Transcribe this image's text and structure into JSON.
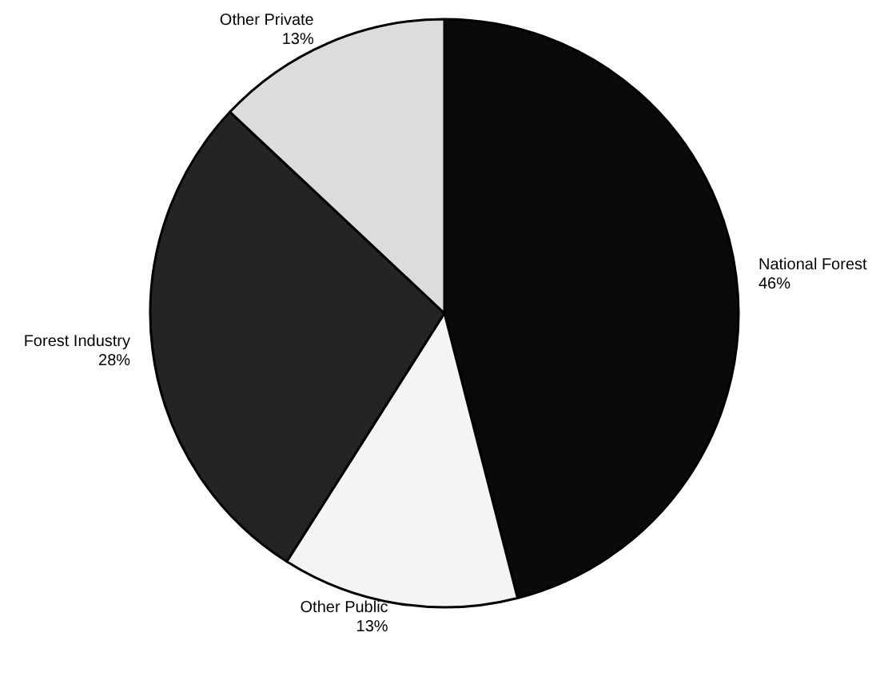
{
  "chart_data": {
    "type": "pie",
    "categories": [
      "National Forest",
      "Other Public",
      "Forest Industry",
      "Other Private"
    ],
    "values": [
      46,
      13,
      28,
      13
    ],
    "value_labels": [
      "46%",
      "13%",
      "28%",
      "13%"
    ],
    "colors": [
      "#0a0a0a",
      "#f4f4f4",
      "#242424",
      "#dcdcdc"
    ],
    "legend": false
  }
}
